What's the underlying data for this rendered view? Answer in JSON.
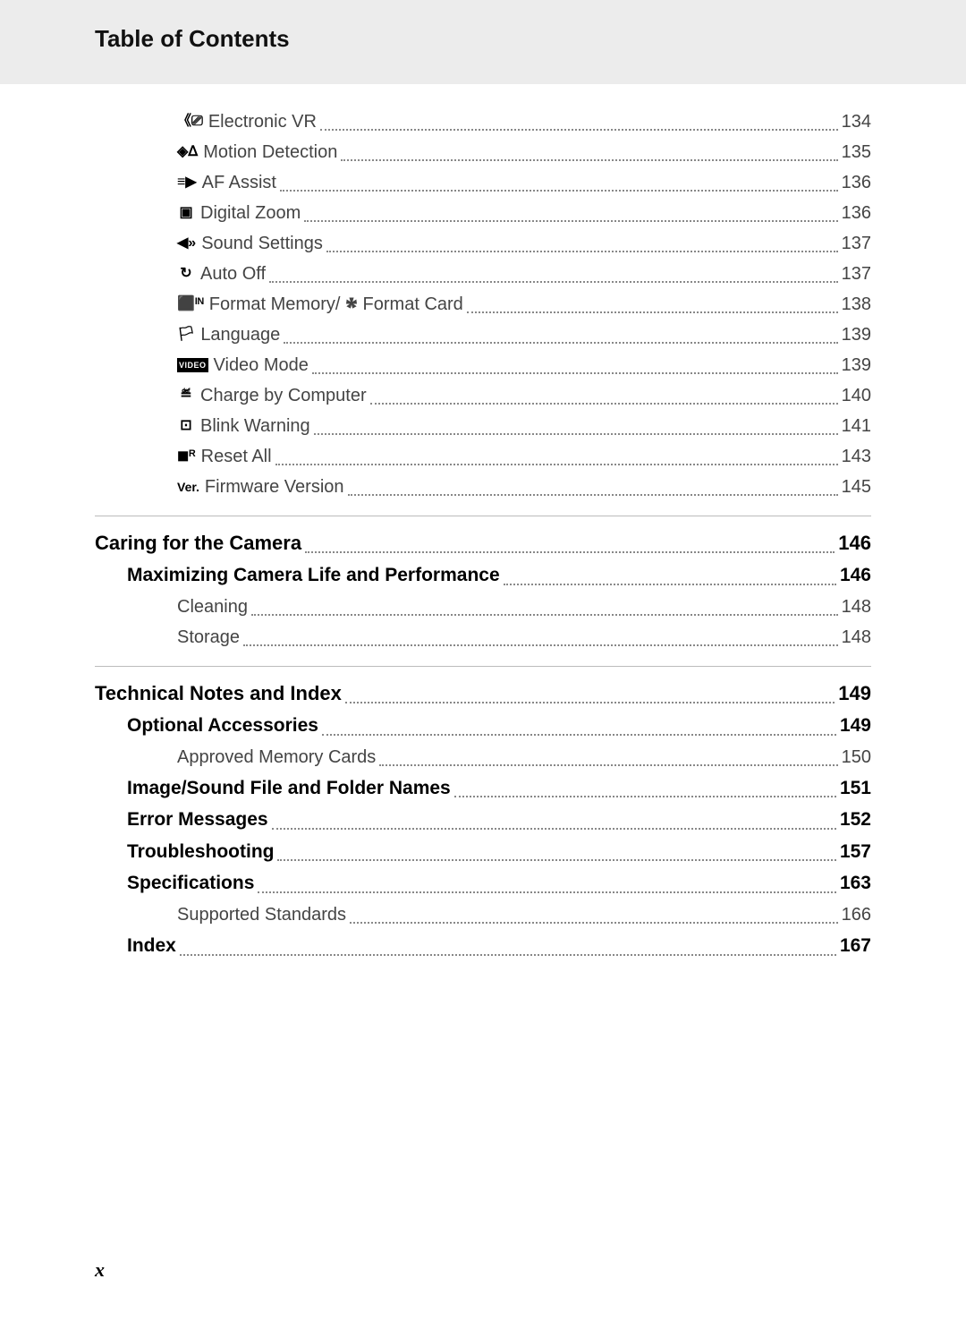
{
  "header": {
    "title": "Table of Contents"
  },
  "page_number": "x",
  "groups": [
    {
      "items": [
        {
          "indent": 2,
          "icon": "electronic-vr-icon",
          "glyph": "《⎚",
          "label": " Electronic VR",
          "page": "134"
        },
        {
          "indent": 2,
          "icon": "motion-detect-icon",
          "glyph": "◈ᐃ",
          "label": " Motion Detection",
          "page": "135"
        },
        {
          "indent": 2,
          "icon": "af-assist-icon",
          "glyph": "≡▶",
          "label": " AF Assist",
          "page": "136"
        },
        {
          "indent": 2,
          "icon": "digital-zoom-icon",
          "glyph": "▣",
          "label": " Digital Zoom",
          "page": "136"
        },
        {
          "indent": 2,
          "icon": "sound-icon",
          "glyph": "◀»",
          "label": " Sound Settings",
          "page": "137"
        },
        {
          "indent": 2,
          "icon": "auto-off-icon",
          "glyph": "↻",
          "label": " Auto Off",
          "page": "137"
        },
        {
          "indent": 2,
          "icon": "format-memory-icon",
          "glyph": "⬛ᴵᴺ",
          "label": " Format Memory/ 🞴 Format Card",
          "page": "138"
        },
        {
          "indent": 2,
          "icon": "language-icon",
          "glyph": "🏳",
          "label": " Language",
          "page": "139"
        },
        {
          "indent": 2,
          "icon": "video-mode-icon",
          "glyph": "VIDEO",
          "label": " Video Mode",
          "page": "139",
          "icon_style": "video"
        },
        {
          "indent": 2,
          "icon": "charge-computer-icon",
          "glyph": "≝",
          "label": " Charge by Computer",
          "page": "140"
        },
        {
          "indent": 2,
          "icon": "blink-warning-icon",
          "glyph": "⊡",
          "label": " Blink Warning",
          "page": "141"
        },
        {
          "indent": 2,
          "icon": "reset-all-icon",
          "glyph": "◼ᴿ",
          "label": " Reset All",
          "page": "143"
        },
        {
          "indent": 2,
          "icon": "firmware-icon",
          "glyph": "Ver.",
          "label": " Firmware Version",
          "page": "145",
          "icon_style": "ver"
        }
      ]
    },
    {
      "rule": true,
      "items": [
        {
          "indent": 0,
          "label": "Caring for the Camera",
          "page": "146"
        },
        {
          "indent": 1,
          "label": "Maximizing Camera Life and Performance",
          "page": " 146"
        },
        {
          "indent": 2,
          "label": "Cleaning",
          "page": "148"
        },
        {
          "indent": 2,
          "label": "Storage",
          "page": "148"
        }
      ]
    },
    {
      "rule": true,
      "items": [
        {
          "indent": 0,
          "label": "Technical Notes and Index",
          "page": "149"
        },
        {
          "indent": 1,
          "label": "Optional Accessories",
          "page": " 149"
        },
        {
          "indent": 2,
          "label": "Approved Memory Cards",
          "page": "150"
        },
        {
          "indent": 1,
          "label": "Image/Sound File and Folder Names",
          "page": " 151"
        },
        {
          "indent": 1,
          "label": "Error Messages",
          "page": " 152"
        },
        {
          "indent": 1,
          "label": "Troubleshooting",
          "page": " 157"
        },
        {
          "indent": 1,
          "label": "Specifications",
          "page": " 163"
        },
        {
          "indent": 2,
          "label": "Supported Standards",
          "page": "166"
        },
        {
          "indent": 1,
          "label": "Index",
          "page": " 167"
        }
      ]
    }
  ],
  "styles": {
    "video_icon": {
      "bg": "#000",
      "fg": "#fff",
      "fontsize": 9,
      "padding": "1px 2px",
      "weight": "700"
    },
    "ver_icon": {
      "fg": "#000",
      "fontsize": 14,
      "weight": "700"
    }
  }
}
